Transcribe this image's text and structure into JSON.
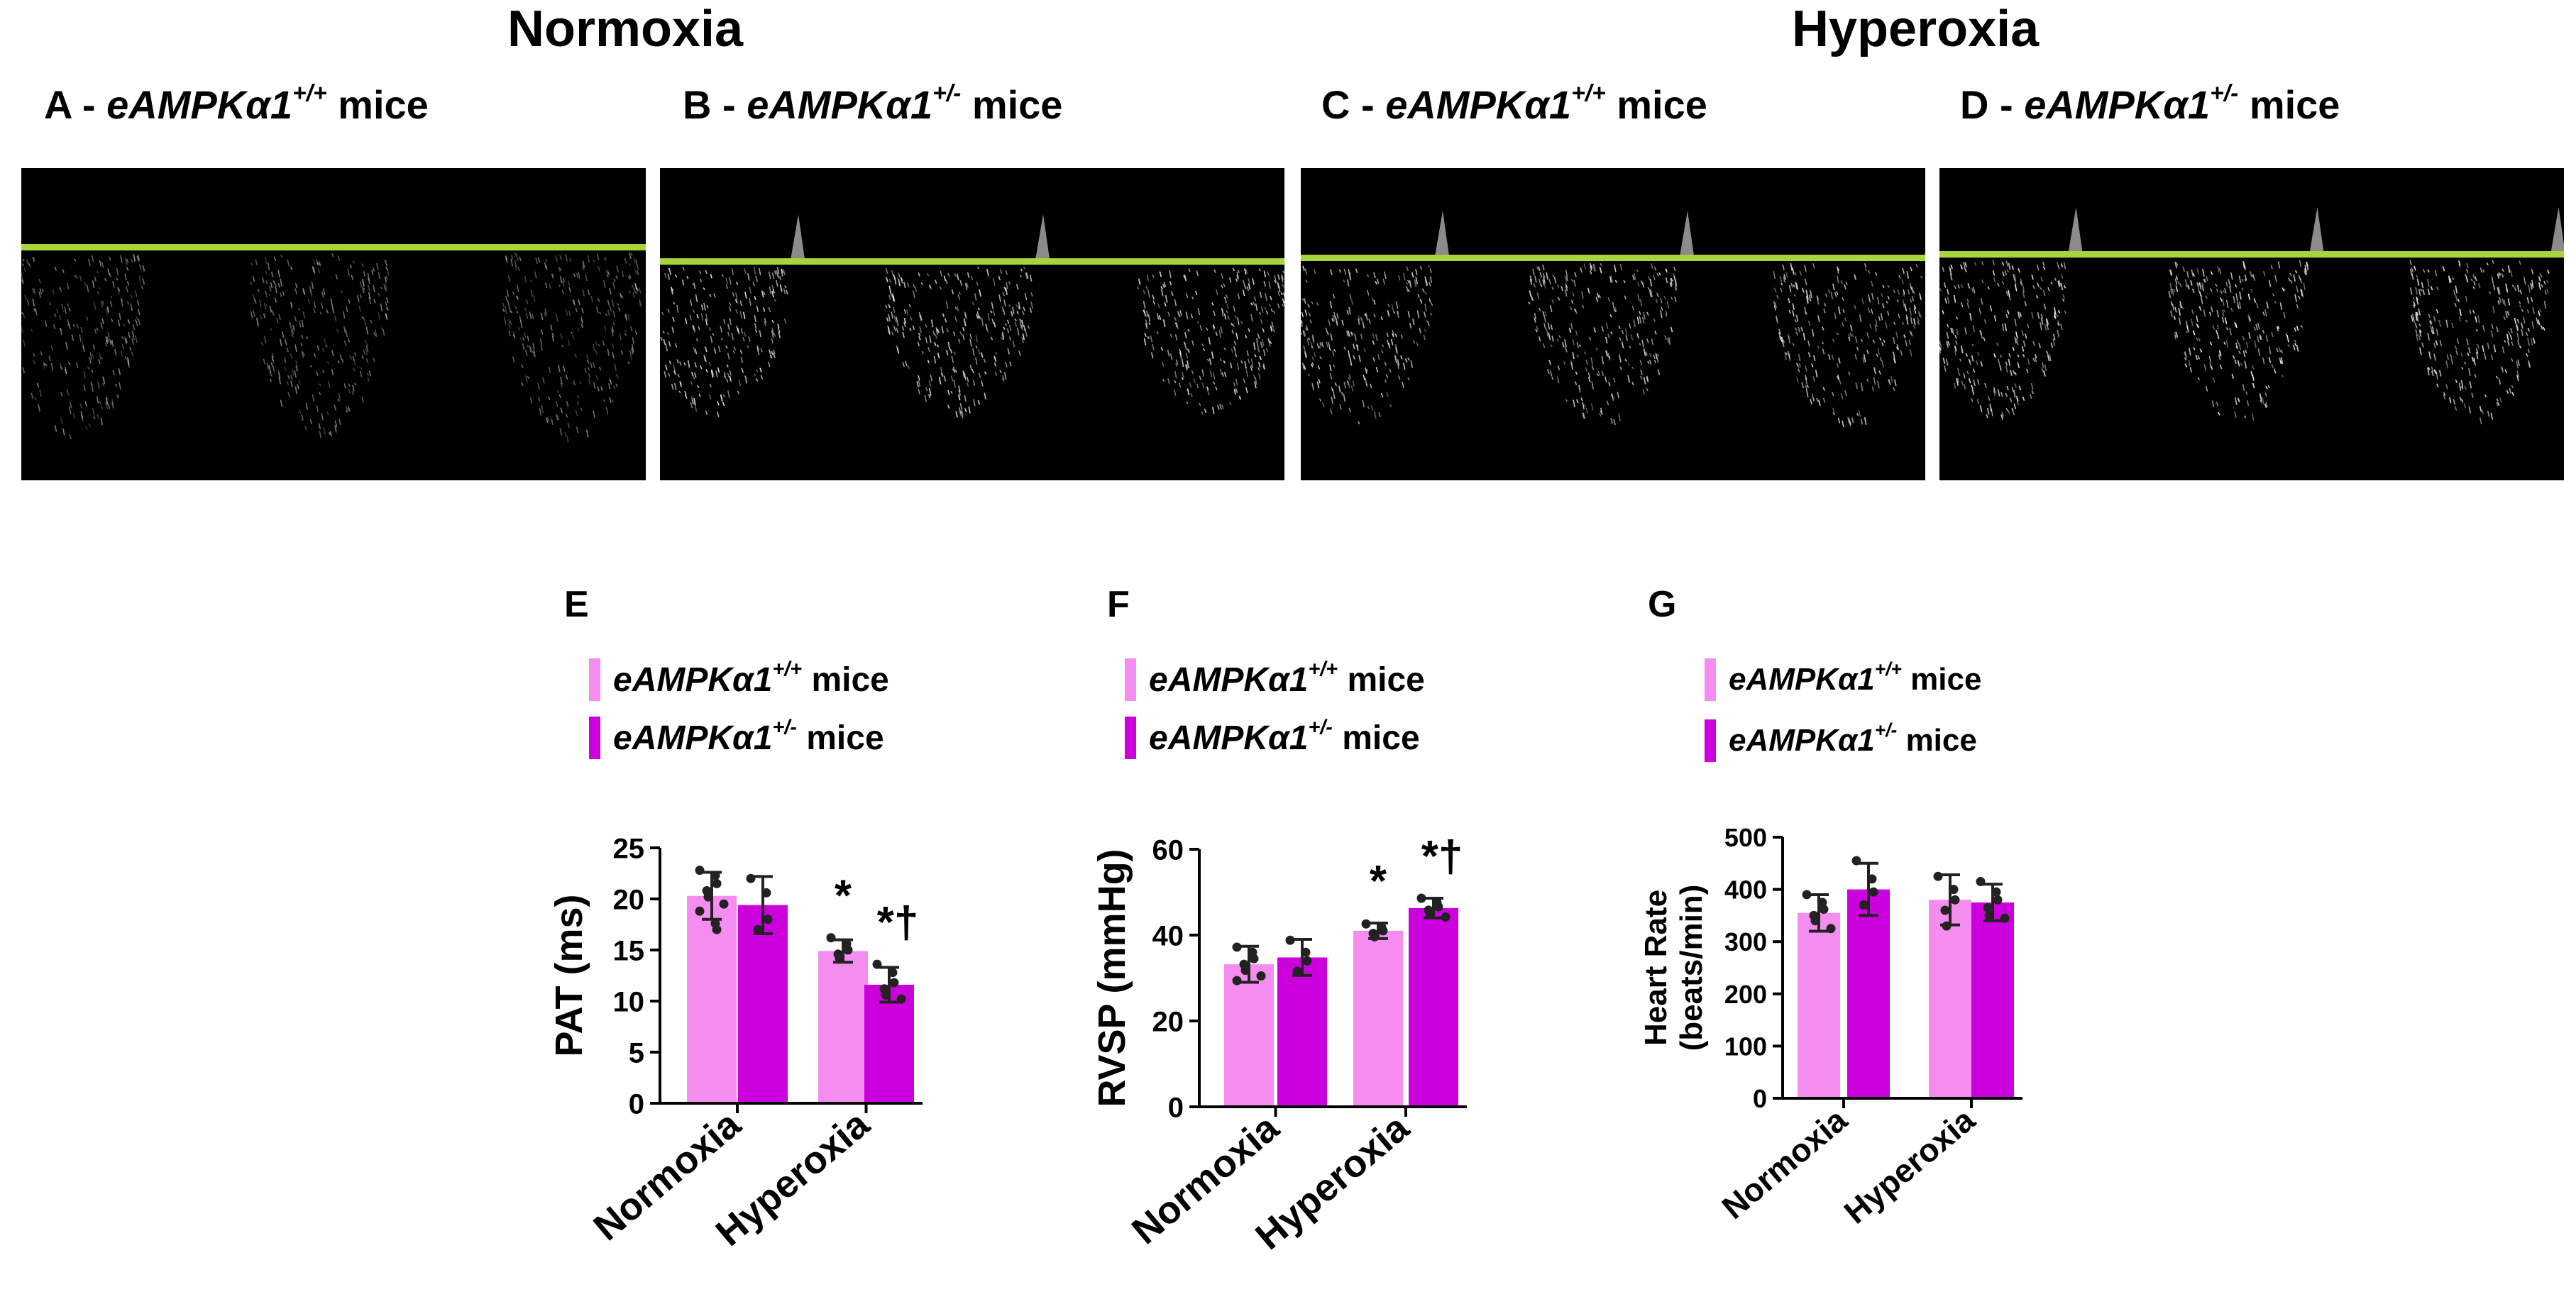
{
  "header": {
    "normoxia_title": "Normoxia",
    "hyperoxia_title": "Hyperoxia"
  },
  "doppler_panels": [
    {
      "letter": "A -",
      "gene": "eAMPKα1",
      "genotype": "+/+",
      "suffix": "mice"
    },
    {
      "letter": "B -",
      "gene": "eAMPKα1",
      "genotype": "+/-",
      "suffix": "mice"
    },
    {
      "letter": "C -",
      "gene": "eAMPKα1",
      "genotype": "+/+",
      "suffix": "mice"
    },
    {
      "letter": "D -",
      "gene": "eAMPKα1",
      "genotype": "+/-",
      "suffix": "mice"
    }
  ],
  "colors": {
    "wt": "#f58cf0",
    "het": "#cc00dd",
    "baseline": "#a8d63a",
    "doppler_bg": "#000000",
    "doppler_signal": "#e8e8e8"
  },
  "chart_data": [
    {
      "panel": "E",
      "type": "bar",
      "legend": [
        {
          "gene": "eAMPKα1",
          "genotype": "+/+",
          "suffix": "mice"
        },
        {
          "gene": "eAMPKα1",
          "genotype": "+/-",
          "suffix": "mice"
        }
      ],
      "categories": [
        "Normoxia",
        "Hyperoxia"
      ],
      "ylabel": "PAT (ms)",
      "ylim": [
        0,
        25
      ],
      "yticks": [
        0,
        5,
        10,
        15,
        20,
        25
      ],
      "series": [
        {
          "values": [
            20.3,
            14.9
          ],
          "errors": [
            2.3,
            1.1
          ],
          "points": [
            [
              22.8,
              22.3,
              21.5,
              20.8,
              20.2,
              19.5,
              18.8,
              17.6,
              17.0
            ],
            [
              16.2,
              15.6,
              15.0,
              14.6,
              14.2
            ]
          ]
        },
        {
          "values": [
            19.4,
            11.6
          ],
          "errors": [
            2.8,
            1.7
          ],
          "points": [
            [
              22.0,
              20.6,
              18.0,
              17.0
            ],
            [
              13.6,
              12.8,
              11.8,
              11.2,
              10.6,
              10.2
            ]
          ]
        }
      ],
      "annotations": [
        {
          "category": "Hyperoxia",
          "series": 0,
          "text": "*"
        },
        {
          "category": "Hyperoxia",
          "series": 1,
          "text": "*†"
        }
      ]
    },
    {
      "panel": "F",
      "type": "bar",
      "legend": [
        {
          "gene": "eAMPKα1",
          "genotype": "+/+",
          "suffix": "mice"
        },
        {
          "gene": "eAMPKα1",
          "genotype": "+/-",
          "suffix": "mice"
        }
      ],
      "categories": [
        "Normoxia",
        "Hyperoxia"
      ],
      "ylabel": "RVSP (mmHg)",
      "ylim": [
        0,
        60
      ],
      "yticks": [
        0,
        20,
        40,
        60
      ],
      "series": [
        {
          "values": [
            33.2,
            41.0
          ],
          "errors": [
            4.2,
            1.8
          ],
          "points": [
            [
              37.2,
              36.0,
              34.5,
              33.2,
              31.8,
              30.5,
              29.4
            ],
            [
              42.6,
              41.8,
              41.0,
              40.4,
              39.6
            ]
          ]
        },
        {
          "values": [
            34.8,
            46.3
          ],
          "errors": [
            4.2,
            2.3
          ],
          "points": [
            [
              38.8,
              36.0,
              34.0,
              31.6
            ],
            [
              48.6,
              47.6,
              46.6,
              45.8,
              44.8,
              44.2
            ]
          ]
        }
      ],
      "annotations": [
        {
          "category": "Hyperoxia",
          "series": 0,
          "text": "*"
        },
        {
          "category": "Hyperoxia",
          "series": 1,
          "text": "*†"
        }
      ]
    },
    {
      "panel": "G",
      "type": "bar",
      "legend": [
        {
          "gene": "eAMPKα1",
          "genotype": "+/+",
          "suffix": "mice"
        },
        {
          "gene": "eAMPKα1",
          "genotype": "+/-",
          "suffix": "mice"
        }
      ],
      "categories": [
        "Normoxia",
        "Hyperoxia"
      ],
      "ylabel": [
        "Heart Rate",
        "(beats/min)"
      ],
      "ylim": [
        0,
        500
      ],
      "yticks": [
        0,
        100,
        200,
        300,
        400,
        500
      ],
      "series": [
        {
          "values": [
            355,
            380
          ],
          "errors": [
            35,
            48
          ],
          "points": [
            [
              390,
              375,
              362,
              350,
              340,
              325
            ],
            [
              425,
              400,
              380,
              360,
              330
            ]
          ]
        },
        {
          "values": [
            400,
            375
          ],
          "errors": [
            50,
            35
          ],
          "points": [
            [
              455,
              420,
              395,
              370
            ],
            [
              415,
              395,
              380,
              365,
              350,
              345
            ]
          ]
        }
      ],
      "annotations": []
    }
  ]
}
